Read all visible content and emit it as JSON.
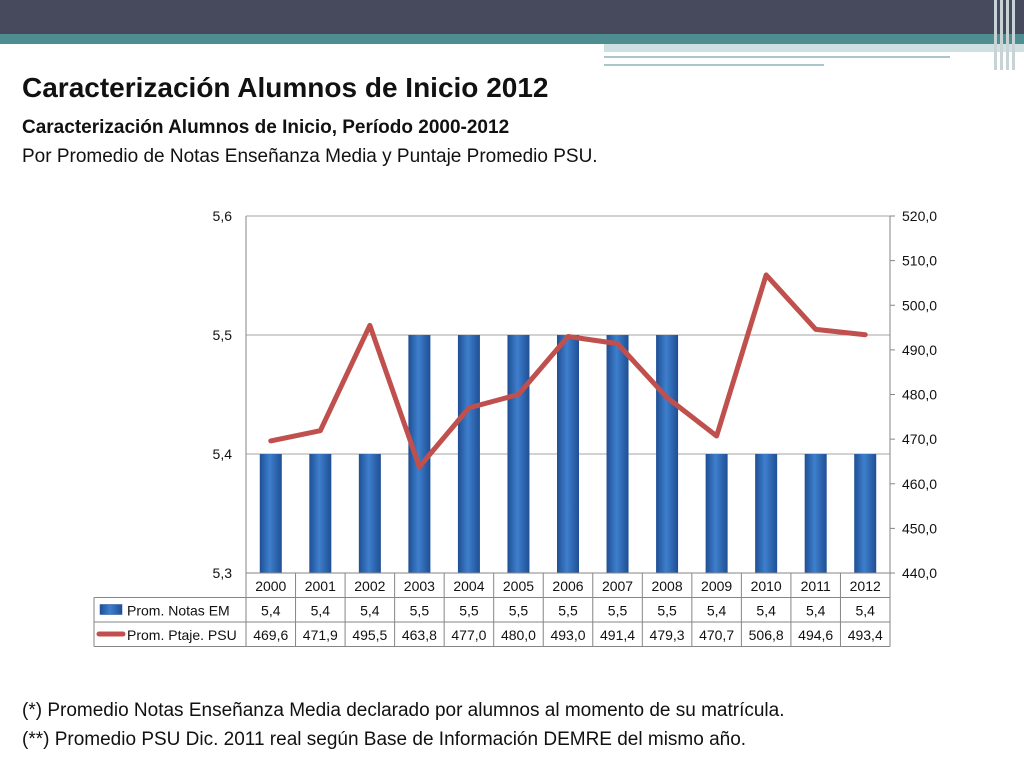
{
  "slide": {
    "title": "Caracterización Alumnos de Inicio 2012",
    "subtitle": "Caracterización Alumnos de Inicio, Período 2000-2012",
    "description": "Por Promedio de Notas Enseñanza Media y Puntaje Promedio PSU.",
    "note1": "(*) Promedio Notas Enseñanza Media declarado por alumnos al momento de su matrícula.",
    "note2": "(**) Promedio PSU Dic. 2011 real según Base de Información DEMRE del mismo año."
  },
  "colors": {
    "header": "#474a5c",
    "stripe": "#4e8d90",
    "bar": "#3e7fcd",
    "line": "#c0504d"
  },
  "chart_data": {
    "type": "bar",
    "categories": [
      "2000",
      "2001",
      "2002",
      "2003",
      "2004",
      "2005",
      "2006",
      "2007",
      "2008",
      "2009",
      "2010",
      "2011",
      "2012"
    ],
    "series": [
      {
        "name": "Prom. Notas EM",
        "type": "bar",
        "axis": "left",
        "values": [
          5.4,
          5.4,
          5.4,
          5.5,
          5.5,
          5.5,
          5.5,
          5.5,
          5.5,
          5.4,
          5.4,
          5.4,
          5.4
        ],
        "labels": [
          "5,4",
          "5,4",
          "5,4",
          "5,5",
          "5,5",
          "5,5",
          "5,5",
          "5,5",
          "5,5",
          "5,4",
          "5,4",
          "5,4",
          "5,4"
        ]
      },
      {
        "name": "Prom. Ptaje. PSU",
        "type": "line",
        "axis": "right",
        "values": [
          469.6,
          471.9,
          495.5,
          463.8,
          477.0,
          480.0,
          493.0,
          491.4,
          479.3,
          470.7,
          506.8,
          494.6,
          493.4
        ],
        "labels": [
          "469,6",
          "471,9",
          "495,5",
          "463,8",
          "477,0",
          "480,0",
          "493,0",
          "491,4",
          "479,3",
          "470,7",
          "506,8",
          "494,6",
          "493,4"
        ]
      }
    ],
    "y_left": {
      "min": 5.3,
      "max": 5.6,
      "ticks": [
        "5,3",
        "5,4",
        "5,5",
        "5,6"
      ]
    },
    "y_right": {
      "min": 440,
      "max": 520,
      "ticks": [
        "440,0",
        "450,0",
        "460,0",
        "470,0",
        "480,0",
        "490,0",
        "500,0",
        "510,0",
        "520,0"
      ]
    },
    "grid": true,
    "legend": "data-table"
  }
}
